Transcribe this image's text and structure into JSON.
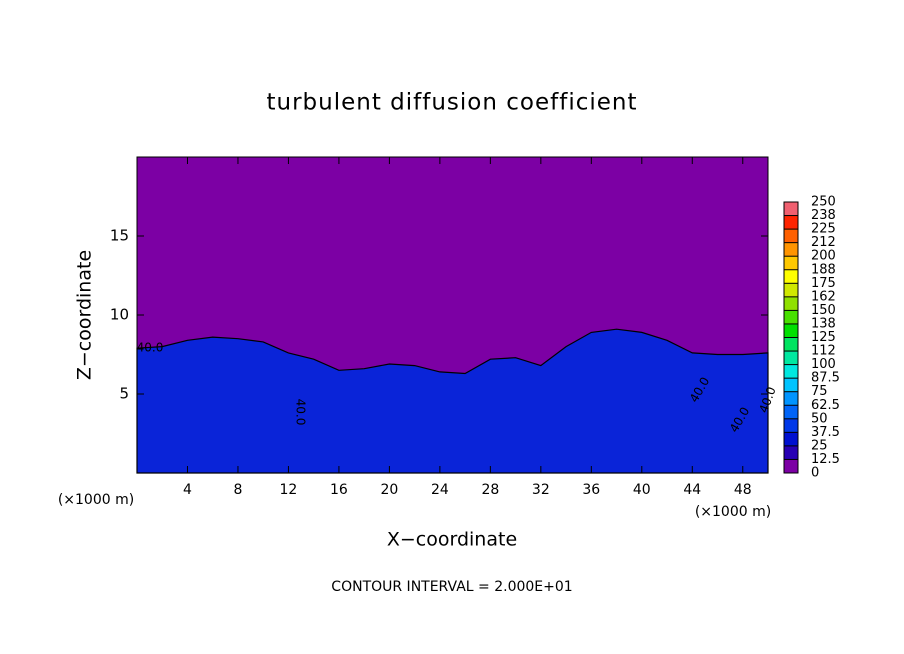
{
  "chart_data": {
    "type": "contour",
    "title": "turbulent diffusion coefficient",
    "xlabel": "X−coordinate",
    "ylabel": "Z−coordinate",
    "x_unit": "(×1000 m)",
    "footer": "CONTOUR INTERVAL = 2.000E+01",
    "contour_labels": [
      "40.0",
      "40.0",
      "40.0",
      "40.0",
      "40.0"
    ],
    "xlim": [
      0,
      50
    ],
    "ylim": [
      0,
      20
    ],
    "xticks": [
      4,
      8,
      12,
      16,
      20,
      24,
      28,
      32,
      36,
      40,
      44,
      48
    ],
    "yticks": [
      5,
      10,
      15
    ],
    "background_color": "#7c00a4",
    "layer_color": "#0a24d8",
    "x": [
      0,
      2,
      4,
      6,
      8,
      10,
      12,
      14,
      16,
      18,
      20,
      22,
      24,
      26,
      28,
      30,
      32,
      34,
      36,
      38,
      40,
      42,
      44,
      46,
      48,
      50
    ],
    "values": [
      7.9,
      8.0,
      8.4,
      8.6,
      8.5,
      8.3,
      7.6,
      7.2,
      6.5,
      6.6,
      6.9,
      6.8,
      6.4,
      6.3,
      7.2,
      7.3,
      6.8,
      8.0,
      8.9,
      9.1,
      8.9,
      8.4,
      7.6,
      7.5,
      7.5,
      7.6
    ],
    "colorbar": {
      "ticks": [
        0,
        12.5,
        25,
        37.5,
        50,
        62.5,
        75,
        87.5,
        100,
        {
          "value": 112.5,
          "label": "112"
        },
        125,
        {
          "value": 137.5,
          "label": "138"
        },
        150,
        {
          "value": 162.5,
          "label": "162"
        },
        175,
        {
          "value": 187.5,
          "label": "188"
        },
        200,
        {
          "value": 212.5,
          "label": "212"
        },
        225,
        {
          "value": 237.5,
          "label": "238"
        },
        250
      ],
      "colors": [
        "#7c00a4",
        "#2800b4",
        "#0010d0",
        "#0038e8",
        "#0064f8",
        "#0094ff",
        "#00c4ff",
        "#00e8e0",
        "#00e8a0",
        "#00e460",
        "#00e000",
        "#48e000",
        "#90e000",
        "#d0e800",
        "#ffff00",
        "#ffc800",
        "#ff9400",
        "#ff6000",
        "#ff2400",
        "#f06070"
      ]
    }
  }
}
